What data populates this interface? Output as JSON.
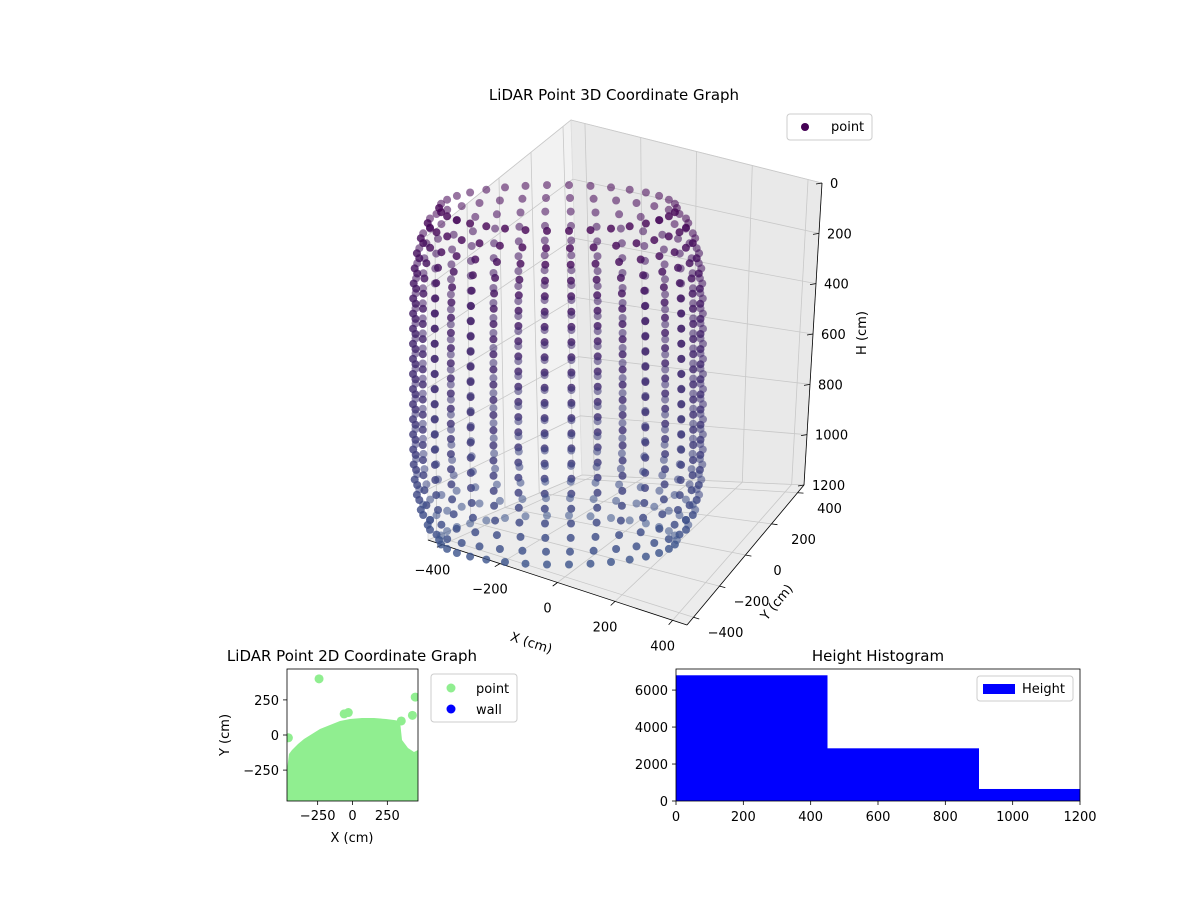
{
  "chart_data": [
    {
      "type": "scatter3d",
      "title": "LiDAR Point 3D Coordinate Graph",
      "xlabel": "X (cm)",
      "ylabel": "Y (cm)",
      "zlabel": "H (cm)",
      "xticks": [
        "−400",
        "−200",
        "0",
        "200",
        "400"
      ],
      "yticks": [
        "−400",
        "−200",
        "0",
        "200",
        "400"
      ],
      "zticks": [
        "0",
        "200",
        "400",
        "600",
        "800",
        "1000",
        "1200"
      ],
      "xlim": [
        -450,
        450
      ],
      "ylim": [
        -450,
        450
      ],
      "zlim": [
        0,
        1200
      ],
      "z_inverted": true,
      "grid": true,
      "legend": {
        "position": "top-right",
        "entries": [
          "point"
        ]
      },
      "colormap": [
        "#440154",
        "#3b528b"
      ],
      "description": "Points arranged on a rounded cylindrical shell (vertical scan lines), radius ~400 cm, height 0–1200 cm."
    },
    {
      "type": "scatter",
      "title": "LiDAR Point 2D Coordinate Graph",
      "xlabel": "X (cm)",
      "ylabel": "Y (cm)",
      "xticks": [
        "−250",
        "0",
        "250"
      ],
      "yticks": [
        "250",
        "0",
        "−250"
      ],
      "xlim": [
        -470,
        470
      ],
      "ylim": [
        -470,
        470
      ],
      "legend": {
        "position": "outside-right",
        "entries": [
          "point",
          "wall"
        ]
      },
      "series": [
        {
          "name": "point",
          "color": "#90ee90"
        },
        {
          "name": "wall",
          "color": "#0000ff"
        }
      ],
      "outliers": [
        [
          -240,
          400
        ],
        [
          -460,
          -20
        ],
        [
          450,
          270
        ],
        [
          430,
          140
        ],
        [
          350,
          100
        ],
        [
          -60,
          150
        ],
        [
          -30,
          160
        ]
      ]
    },
    {
      "type": "bar",
      "title": "Height Histogram",
      "xlabel": "",
      "ylabel": "",
      "bins": [
        [
          0,
          450
        ],
        [
          450,
          900
        ],
        [
          900,
          1200
        ]
      ],
      "values": [
        6800,
        2850,
        650
      ],
      "xticks": [
        "0",
        "200",
        "400",
        "600",
        "800",
        "1000",
        "1200"
      ],
      "yticks": [
        "0",
        "2000",
        "4000",
        "6000"
      ],
      "xlim": [
        0,
        1200
      ],
      "ylim": [
        0,
        7140
      ],
      "legend": {
        "position": "top-right",
        "entries": [
          "Height"
        ]
      },
      "color": "#0000ff"
    }
  ]
}
